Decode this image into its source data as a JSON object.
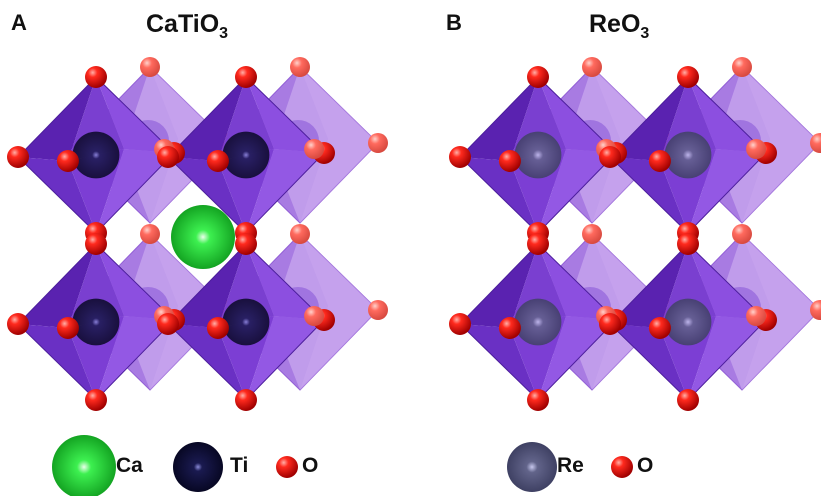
{
  "panels": [
    {
      "letter": "A",
      "title_main": "CaTiO",
      "title_sub": "3",
      "has_center_atom": true,
      "center_atom": "Ca",
      "octahedron_center_atom": "Ti"
    },
    {
      "letter": "B",
      "title_main": "ReO",
      "title_sub": "3",
      "has_center_atom": false,
      "octahedron_center_atom": "Re"
    }
  ],
  "legend": {
    "a": [
      {
        "label": "Ca",
        "icon": "ca-sphere-icon"
      },
      {
        "label": "Ti",
        "icon": "ti-sphere-icon"
      },
      {
        "label": "O",
        "icon": "o-sphere-icon"
      }
    ],
    "b": [
      {
        "label": "Re",
        "icon": "re-sphere-icon"
      },
      {
        "label": "O",
        "icon": "o-sphere-icon"
      }
    ]
  },
  "colors": {
    "octahedron": "#7a3fd0",
    "octahedron_dark": "#5a22b0",
    "octahedron_back": "#b58be8",
    "oxygen": "#e8110f",
    "calcium": "#22d63a",
    "titanium": "#0c0c3a",
    "rhenium": "#5a5c80"
  }
}
